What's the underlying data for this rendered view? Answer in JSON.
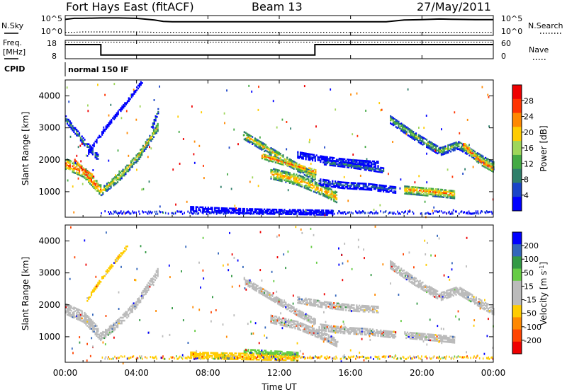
{
  "header": {
    "radar_title": "Fort Hays East (fitACF)",
    "beam_label": "Beam 13",
    "date_label": "27/May/2011"
  },
  "strip_labels": {
    "nsky": "N.Sky",
    "nsearch": "N.Search",
    "freq_line1": "Freq.",
    "freq_line2": "[MHz]",
    "nave": "Nave",
    "cpid": "CPID",
    "cpid_mode": "normal 150 IF",
    "nsky_ticks": [
      "10^5",
      "10^0"
    ],
    "nsearch_ticks": [
      "10^5",
      "10^0"
    ],
    "freq_ticks": [
      "18",
      "8"
    ],
    "nave_ticks": [
      "60",
      "0"
    ]
  },
  "colors": {
    "power": [
      "#0000ff",
      "#1a44c8",
      "#2f7f6a",
      "#44aa44",
      "#9fd65a",
      "#ffcc00",
      "#ff8800",
      "#ff3300",
      "#ee0000"
    ],
    "velocity": [
      "#0000ff",
      "#3366bb",
      "#339944",
      "#66cc44",
      "#bbbbbb",
      "#bbbbbb",
      "#ffcc00",
      "#ff8800",
      "#ff4400",
      "#ee0000"
    ],
    "ground_scatter": "#b4b4b4"
  },
  "chart_data": [
    {
      "type": "line",
      "panel": "N.Sky / N.Search",
      "x_hours": [
        0,
        0.5,
        1,
        2,
        3,
        4,
        5,
        5.5,
        6,
        8,
        10,
        12,
        14,
        16,
        18,
        18.6,
        19,
        20,
        21,
        22,
        23,
        24
      ],
      "series": [
        {
          "name": "N.Sky",
          "values_log10": [
            4.3,
            4.6,
            4.6,
            4.7,
            4.7,
            4.6,
            4.1,
            3.7,
            3.6,
            3.6,
            3.6,
            3.6,
            3.6,
            3.6,
            3.6,
            3.9,
            4.1,
            4.2,
            4.4,
            4.3,
            4.2,
            4.2
          ]
        },
        {
          "name": "N.Search",
          "values_log10": [
            0.5,
            0.5,
            0.6,
            0.6,
            0.6,
            0.6,
            0.5,
            0.5,
            0.5,
            0.5,
            0.5,
            0.5,
            0.5,
            0.5,
            0.5,
            0.5,
            0.5,
            0.5,
            0.5,
            0.5,
            0.5,
            0.5
          ]
        }
      ]
    },
    {
      "type": "line",
      "panel": "Freq. / Nave",
      "series": [
        {
          "name": "Freq.",
          "points": [
            [
              0,
              16.2
            ],
            [
              2,
              16.2
            ],
            [
              2,
              9.5
            ],
            [
              14,
              9.5
            ],
            [
              14,
              16.2
            ],
            [
              24,
              16.2
            ]
          ],
          "ylim": [
            8,
            18
          ]
        },
        {
          "name": "Nave",
          "points": [
            [
              0,
              58
            ],
            [
              24,
              58
            ]
          ],
          "ylim": [
            0,
            60
          ]
        }
      ]
    },
    {
      "type": "heatmap",
      "panel": "Power",
      "xlabel": "",
      "ylabel": "Slant Range [km]",
      "xlim": [
        0,
        24
      ],
      "ylim": [
        200,
        4500
      ],
      "colorbar_label": "Power [dB]",
      "colorbar_ticks": [
        "4",
        "8",
        "12",
        "16",
        "20",
        "24",
        "28"
      ],
      "bands": [
        {
          "x": [
            0.0,
            1.0,
            2.0
          ],
          "y": [
            1900,
            1650,
            1050
          ],
          "width_km": 320,
          "level": 7
        },
        {
          "x": [
            0.0,
            1.0,
            1.8
          ],
          "y": [
            3300,
            2600,
            2100
          ],
          "width_km": 180,
          "level": 3
        },
        {
          "x": [
            2.0,
            3.0,
            4.0,
            5.2
          ],
          "y": [
            1050,
            1500,
            2100,
            3100
          ],
          "width_km": 260,
          "level": 5
        },
        {
          "x": [
            1.2,
            2.2,
            3.5,
            4.3
          ],
          "y": [
            2200,
            3000,
            3900,
            4500
          ],
          "width_km": 100,
          "level": 0
        },
        {
          "x": [
            4.8,
            5.2
          ],
          "y": [
            3000,
            3600
          ],
          "width_km": 160,
          "level": 3
        },
        {
          "x": [
            10.0,
            11.5,
            13.0,
            14.0
          ],
          "y": [
            2800,
            2300,
            1800,
            1500
          ],
          "width_km": 260,
          "level": 5
        },
        {
          "x": [
            11.0,
            12.5,
            14.0
          ],
          "y": [
            2150,
            1900,
            1650
          ],
          "width_km": 160,
          "level": 7
        },
        {
          "x": [
            11.5,
            13.0,
            14.5,
            15.2
          ],
          "y": [
            1600,
            1400,
            1050,
            850
          ],
          "width_km": 320,
          "level": 6
        },
        {
          "x": [
            13.0,
            14.5,
            16.0,
            17.5
          ],
          "y": [
            2200,
            2050,
            1950,
            1900
          ],
          "width_km": 220,
          "level": 1
        },
        {
          "x": [
            14.2,
            15.5,
            17.0,
            18.5
          ],
          "y": [
            1350,
            1250,
            1200,
            1100
          ],
          "width_km": 220,
          "level": 2
        },
        {
          "x": [
            14.5,
            16.0,
            17.8
          ],
          "y": [
            1950,
            1850,
            1700
          ],
          "width_km": 140,
          "level": 3
        },
        {
          "x": [
            19.0,
            20.0,
            21.0,
            21.8
          ],
          "y": [
            1100,
            1050,
            1000,
            950
          ],
          "width_km": 260,
          "level": 6
        },
        {
          "x": [
            18.2,
            19.5,
            21.0,
            22.0,
            23.5,
            24.0
          ],
          "y": [
            3300,
            2800,
            2300,
            2500,
            2000,
            1850
          ],
          "width_km": 260,
          "level": 4
        },
        {
          "x": [
            22.3,
            23.2,
            24.0
          ],
          "y": [
            2500,
            2000,
            1750
          ],
          "width_km": 220,
          "level": 7
        },
        {
          "x": [
            7.0,
            9.0,
            11.0,
            13.0,
            15.0
          ],
          "y": [
            500,
            450,
            420,
            400,
            380
          ],
          "width_km": 160,
          "level": 0
        },
        {
          "x": [
            0.5,
            1.0,
            1.6
          ],
          "y": [
            2000,
            1700,
            1500
          ],
          "width_km": 120,
          "level": 8
        }
      ]
    },
    {
      "type": "heatmap",
      "panel": "Velocity",
      "xlabel": "Time UT",
      "ylabel": "Slant Range [km]",
      "xlim": [
        0,
        24
      ],
      "ylim": [
        200,
        4500
      ],
      "colorbar_label": "Velocity [m s^-1]",
      "colorbar_ticks": [
        "200",
        "100",
        "50",
        "15",
        "-15",
        "-50",
        "-100",
        "-200"
      ],
      "bands": [
        {
          "x": [
            0.0,
            1.0,
            2.0
          ],
          "y": [
            1900,
            1650,
            1050
          ],
          "width_km": 320,
          "level": 4
        },
        {
          "x": [
            2.0,
            3.0,
            4.0,
            5.2
          ],
          "y": [
            1050,
            1500,
            2100,
            3100
          ],
          "width_km": 260,
          "level": 4
        },
        {
          "x": [
            1.2,
            2.2,
            3.5
          ],
          "y": [
            2200,
            3000,
            3900
          ],
          "width_km": 100,
          "level": 6
        },
        {
          "x": [
            10.0,
            11.5,
            13.0,
            14.0
          ],
          "y": [
            2800,
            2300,
            1800,
            1500
          ],
          "width_km": 220,
          "level": 4
        },
        {
          "x": [
            11.5,
            13.0,
            14.5,
            15.2
          ],
          "y": [
            1600,
            1400,
            1050,
            850
          ],
          "width_km": 260,
          "level": 4
        },
        {
          "x": [
            13.0,
            14.5,
            16.0,
            17.5
          ],
          "y": [
            2200,
            2050,
            1950,
            1900
          ],
          "width_km": 220,
          "level": 4
        },
        {
          "x": [
            14.2,
            15.5,
            17.0,
            18.5
          ],
          "y": [
            1350,
            1250,
            1200,
            1100
          ],
          "width_km": 220,
          "level": 4
        },
        {
          "x": [
            18.2,
            19.5,
            21.0,
            22.0,
            23.5,
            24.0
          ],
          "y": [
            3300,
            2800,
            2300,
            2500,
            2000,
            1850
          ],
          "width_km": 260,
          "level": 4
        },
        {
          "x": [
            19.0,
            20.0,
            21.0,
            21.8
          ],
          "y": [
            1100,
            1050,
            1000,
            950
          ],
          "width_km": 220,
          "level": 4
        },
        {
          "x": [
            7.0,
            9.0,
            11.0,
            13.0
          ],
          "y": [
            450,
            420,
            400,
            380
          ],
          "width_km": 180,
          "level": 6
        },
        {
          "x": [
            10.0,
            11.5,
            13.0
          ],
          "y": [
            600,
            550,
            500
          ],
          "width_km": 120,
          "level": 3
        }
      ]
    }
  ],
  "x_axis": {
    "ticks": [
      "00:00",
      "04:00",
      "08:00",
      "12:00",
      "16:00",
      "20:00",
      "00:00"
    ],
    "label": "Time UT"
  },
  "range_ticks": [
    "1000",
    "2000",
    "3000",
    "4000"
  ]
}
